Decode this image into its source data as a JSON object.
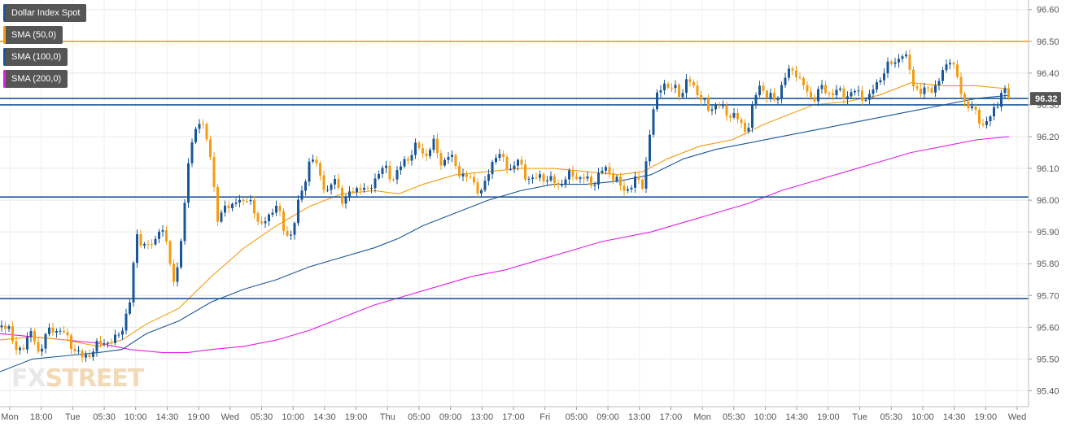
{
  "legend": [
    {
      "label": "Dollar Index Spot",
      "color": "#1a5799"
    },
    {
      "label": "SMA (50,0)",
      "color": "#f39c12"
    },
    {
      "label": "SMA (100,0)",
      "color": "#1a5799"
    },
    {
      "label": "SMA (200,0)",
      "color": "#e61ce6"
    }
  ],
  "watermark": {
    "part1": "FX",
    "part2": "STREET"
  },
  "current_price_label": "96.32",
  "colors": {
    "up": "#1a5799",
    "down": "#f39c12",
    "sma50": "#f39c12",
    "sma100": "#1a5799",
    "sma200": "#e61ce6",
    "grid": "#e8e8e8",
    "axis_text": "#555555",
    "price_box": "#555555"
  },
  "chart_data": {
    "type": "candlestick",
    "symbol": "Dollar Index Spot",
    "y_ticks": [
      "96.60",
      "96.50",
      "96.40",
      "96.30",
      "96.20",
      "96.10",
      "96.00",
      "95.90",
      "95.80",
      "95.70",
      "95.60",
      "95.50",
      "95.40"
    ],
    "ylim": [
      95.35,
      96.63
    ],
    "x_ticks": [
      "Mon",
      "18:00",
      "Tue",
      "05:30",
      "10:00",
      "14:30",
      "19:00",
      "Wed",
      "05:30",
      "10:00",
      "14:30",
      "19:00",
      "Thu",
      "05:00",
      "09:00",
      "13:00",
      "17:00",
      "Fri",
      "05:00",
      "09:00",
      "13:00",
      "17:00",
      "Mon",
      "05:30",
      "10:00",
      "14:30",
      "19:00",
      "Tue",
      "05:30",
      "10:00",
      "14:30",
      "19:00",
      "Wed"
    ],
    "horizontal_levels": [
      {
        "value": 96.5,
        "color": "#f39c12"
      },
      {
        "value": 96.32,
        "color": "#1a5799"
      },
      {
        "value": 96.3,
        "color": "#1a5799"
      },
      {
        "value": 96.01,
        "color": "#1a5799"
      },
      {
        "value": 95.69,
        "color": "#1a5799"
      }
    ],
    "current_price": 96.32,
    "keypoints": [
      [
        0,
        95.6
      ],
      [
        9,
        95.62
      ],
      [
        18,
        95.52
      ],
      [
        30,
        95.55
      ],
      [
        40,
        95.58
      ],
      [
        48,
        95.52
      ],
      [
        56,
        95.57
      ],
      [
        66,
        95.6
      ],
      [
        78,
        95.58
      ],
      [
        90,
        95.54
      ],
      [
        100,
        95.5
      ],
      [
        110,
        95.52
      ],
      [
        120,
        95.54
      ],
      [
        130,
        95.56
      ],
      [
        140,
        95.55
      ],
      [
        150,
        95.6
      ],
      [
        160,
        95.68
      ],
      [
        168,
        95.9
      ],
      [
        178,
        95.85
      ],
      [
        188,
        95.86
      ],
      [
        196,
        95.92
      ],
      [
        206,
        95.85
      ],
      [
        214,
        95.74
      ],
      [
        224,
        95.88
      ],
      [
        232,
        96.15
      ],
      [
        240,
        96.22
      ],
      [
        248,
        96.24
      ],
      [
        256,
        96.2
      ],
      [
        262,
        96.05
      ],
      [
        268,
        95.92
      ],
      [
        276,
        96.0
      ],
      [
        284,
        95.96
      ],
      [
        292,
        96.01
      ],
      [
        302,
        96.0
      ],
      [
        312,
        95.97
      ],
      [
        322,
        95.92
      ],
      [
        330,
        95.94
      ],
      [
        340,
        96.0
      ],
      [
        350,
        95.88
      ],
      [
        358,
        95.9
      ],
      [
        366,
        95.98
      ],
      [
        374,
        96.05
      ],
      [
        382,
        96.15
      ],
      [
        392,
        96.08
      ],
      [
        402,
        96.03
      ],
      [
        412,
        96.06
      ],
      [
        422,
        96.0
      ],
      [
        432,
        96.02
      ],
      [
        442,
        96.05
      ],
      [
        452,
        96.02
      ],
      [
        462,
        96.08
      ],
      [
        472,
        96.1
      ],
      [
        482,
        96.07
      ],
      [
        492,
        96.1
      ],
      [
        502,
        96.14
      ],
      [
        512,
        96.17
      ],
      [
        522,
        96.14
      ],
      [
        532,
        96.18
      ],
      [
        542,
        96.12
      ],
      [
        552,
        96.14
      ],
      [
        562,
        96.1
      ],
      [
        572,
        96.07
      ],
      [
        582,
        96.06
      ],
      [
        592,
        96.02
      ],
      [
        600,
        96.08
      ],
      [
        608,
        96.15
      ],
      [
        616,
        96.13
      ],
      [
        626,
        96.1
      ],
      [
        636,
        96.12
      ],
      [
        646,
        96.08
      ],
      [
        656,
        96.06
      ],
      [
        666,
        96.08
      ],
      [
        676,
        96.06
      ],
      [
        686,
        96.05
      ],
      [
        696,
        96.07
      ],
      [
        706,
        96.08
      ],
      [
        716,
        96.07
      ],
      [
        726,
        96.05
      ],
      [
        736,
        96.08
      ],
      [
        746,
        96.1
      ],
      [
        756,
        96.07
      ],
      [
        764,
        96.03
      ],
      [
        772,
        96.04
      ],
      [
        780,
        96.06
      ],
      [
        790,
        96.05
      ],
      [
        798,
        96.2
      ],
      [
        806,
        96.32
      ],
      [
        814,
        96.38
      ],
      [
        822,
        96.34
      ],
      [
        830,
        96.36
      ],
      [
        838,
        96.33
      ],
      [
        846,
        96.38
      ],
      [
        854,
        96.36
      ],
      [
        862,
        96.31
      ],
      [
        870,
        96.29
      ],
      [
        880,
        96.3
      ],
      [
        890,
        96.28
      ],
      [
        900,
        96.27
      ],
      [
        910,
        96.24
      ],
      [
        918,
        96.22
      ],
      [
        926,
        96.3
      ],
      [
        934,
        96.37
      ],
      [
        942,
        96.33
      ],
      [
        952,
        96.31
      ],
      [
        960,
        96.36
      ],
      [
        968,
        96.4
      ],
      [
        978,
        96.41
      ],
      [
        988,
        96.35
      ],
      [
        998,
        96.32
      ],
      [
        1008,
        96.35
      ],
      [
        1018,
        96.34
      ],
      [
        1028,
        96.34
      ],
      [
        1038,
        96.33
      ],
      [
        1048,
        96.34
      ],
      [
        1058,
        96.33
      ],
      [
        1068,
        96.32
      ],
      [
        1076,
        96.36
      ],
      [
        1084,
        96.4
      ],
      [
        1092,
        96.42
      ],
      [
        1100,
        96.44
      ],
      [
        1108,
        96.46
      ],
      [
        1116,
        96.43
      ],
      [
        1124,
        96.36
      ],
      [
        1132,
        96.33
      ],
      [
        1142,
        96.36
      ],
      [
        1152,
        96.35
      ],
      [
        1160,
        96.42
      ],
      [
        1168,
        96.45
      ],
      [
        1176,
        96.38
      ],
      [
        1184,
        96.32
      ],
      [
        1192,
        96.29
      ],
      [
        1200,
        96.27
      ],
      [
        1208,
        96.24
      ],
      [
        1216,
        96.25
      ],
      [
        1224,
        96.3
      ],
      [
        1232,
        96.35
      ],
      [
        1240,
        96.32
      ]
    ],
    "sma50": [
      [
        0,
        95.56
      ],
      [
        40,
        95.57
      ],
      [
        80,
        95.56
      ],
      [
        120,
        95.54
      ],
      [
        150,
        95.56
      ],
      [
        180,
        95.61
      ],
      [
        220,
        95.66
      ],
      [
        260,
        95.76
      ],
      [
        300,
        95.85
      ],
      [
        340,
        95.92
      ],
      [
        380,
        95.98
      ],
      [
        420,
        96.02
      ],
      [
        460,
        96.03
      ],
      [
        490,
        96.02
      ],
      [
        520,
        96.05
      ],
      [
        560,
        96.08
      ],
      [
        600,
        96.09
      ],
      [
        640,
        96.1
      ],
      [
        680,
        96.1
      ],
      [
        720,
        96.09
      ],
      [
        760,
        96.08
      ],
      [
        790,
        96.09
      ],
      [
        820,
        96.13
      ],
      [
        860,
        96.17
      ],
      [
        900,
        96.19
      ],
      [
        940,
        96.24
      ],
      [
        980,
        96.28
      ],
      [
        1000,
        96.3
      ],
      [
        1040,
        96.31
      ],
      [
        1080,
        96.33
      ],
      [
        1120,
        96.37
      ],
      [
        1160,
        96.36
      ],
      [
        1200,
        96.36
      ],
      [
        1240,
        96.35
      ]
    ],
    "sma100": [
      [
        0,
        95.46
      ],
      [
        40,
        95.5
      ],
      [
        80,
        95.51
      ],
      [
        120,
        95.52
      ],
      [
        150,
        95.53
      ],
      [
        180,
        95.58
      ],
      [
        220,
        95.62
      ],
      [
        260,
        95.68
      ],
      [
        300,
        95.72
      ],
      [
        340,
        95.75
      ],
      [
        380,
        95.79
      ],
      [
        420,
        95.82
      ],
      [
        460,
        95.85
      ],
      [
        490,
        95.88
      ],
      [
        520,
        95.92
      ],
      [
        560,
        95.96
      ],
      [
        600,
        96.0
      ],
      [
        640,
        96.03
      ],
      [
        680,
        96.05
      ],
      [
        720,
        96.05
      ],
      [
        760,
        96.06
      ],
      [
        800,
        96.08
      ],
      [
        840,
        96.13
      ],
      [
        880,
        96.16
      ],
      [
        920,
        96.18
      ],
      [
        960,
        96.2
      ],
      [
        1000,
        96.22
      ],
      [
        1040,
        96.24
      ],
      [
        1080,
        96.26
      ],
      [
        1120,
        96.28
      ],
      [
        1160,
        96.3
      ],
      [
        1200,
        96.32
      ],
      [
        1240,
        96.33
      ]
    ],
    "sma200": [
      [
        0,
        95.58
      ],
      [
        40,
        95.57
      ],
      [
        80,
        95.56
      ],
      [
        120,
        95.55
      ],
      [
        160,
        95.53
      ],
      [
        200,
        95.52
      ],
      [
        230,
        95.52
      ],
      [
        260,
        95.53
      ],
      [
        300,
        95.54
      ],
      [
        340,
        95.56
      ],
      [
        380,
        95.59
      ],
      [
        420,
        95.63
      ],
      [
        460,
        95.67
      ],
      [
        500,
        95.7
      ],
      [
        540,
        95.73
      ],
      [
        580,
        95.76
      ],
      [
        620,
        95.78
      ],
      [
        660,
        95.81
      ],
      [
        700,
        95.84
      ],
      [
        740,
        95.87
      ],
      [
        800,
        95.9
      ],
      [
        840,
        95.93
      ],
      [
        880,
        95.96
      ],
      [
        920,
        95.99
      ],
      [
        960,
        96.03
      ],
      [
        1000,
        96.06
      ],
      [
        1040,
        96.09
      ],
      [
        1080,
        96.12
      ],
      [
        1120,
        96.15
      ],
      [
        1160,
        96.17
      ],
      [
        1200,
        96.19
      ],
      [
        1240,
        96.2
      ]
    ]
  }
}
